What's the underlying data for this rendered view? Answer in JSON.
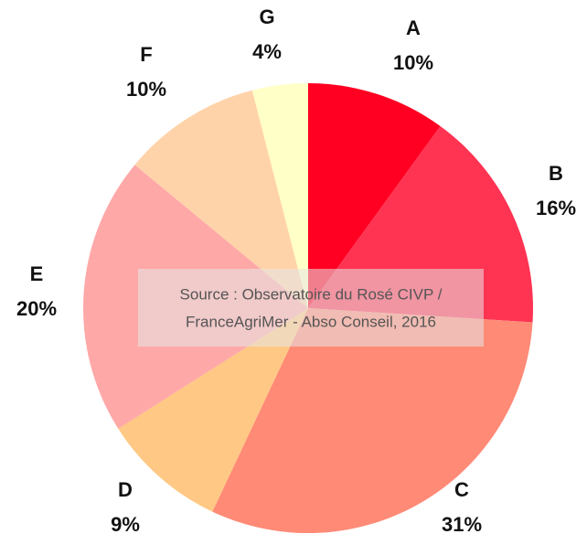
{
  "chart_data": {
    "type": "pie",
    "categories": [
      "A",
      "B",
      "C",
      "D",
      "E",
      "F",
      "G"
    ],
    "values": [
      10,
      16,
      31,
      9,
      20,
      10,
      4
    ],
    "value_labels": [
      "10%",
      "16%",
      "31%",
      "9%",
      "20%",
      "10%",
      "4%"
    ],
    "colors": [
      "#ff0022",
      "#ff3352",
      "#ff8a76",
      "#ffc884",
      "#ffa8a8",
      "#ffd3aa",
      "#ffffc8"
    ],
    "annotation": [
      "Source : Observatoire du Rosé CIVP /",
      "FranceAgriMer - Abso Conseil, 2016"
    ]
  }
}
